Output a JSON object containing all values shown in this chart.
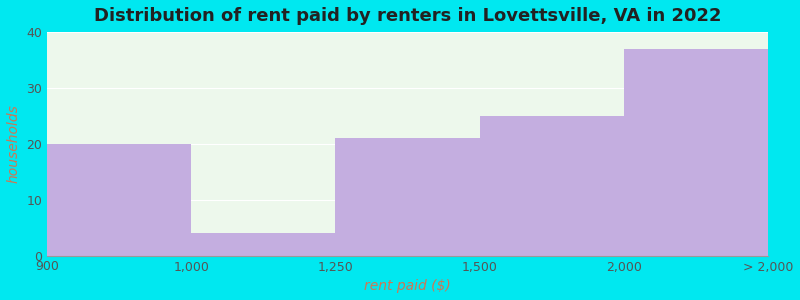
{
  "title": "Distribution of rent paid by renters in Lovettsville, VA in 2022",
  "xlabel": "rent paid ($)",
  "ylabel": "households",
  "bar_values": [
    20,
    4,
    21,
    25,
    37
  ],
  "bar_color": "#c4aee0",
  "ylim": [
    0,
    40
  ],
  "yticks": [
    0,
    10,
    20,
    30,
    40
  ],
  "background_outer": "#00e8f0",
  "background_inner": "#edf8ec",
  "title_fontsize": 13,
  "axis_label_fontsize": 10,
  "tick_fontsize": 9,
  "tick_labels": [
    "900",
    "1,000",
    "1,250",
    "1,500",
    "2,000",
    "> 2,000"
  ],
  "tick_color": "#555555",
  "ylabel_color": "#cc7755",
  "xlabel_color": "#cc7755"
}
